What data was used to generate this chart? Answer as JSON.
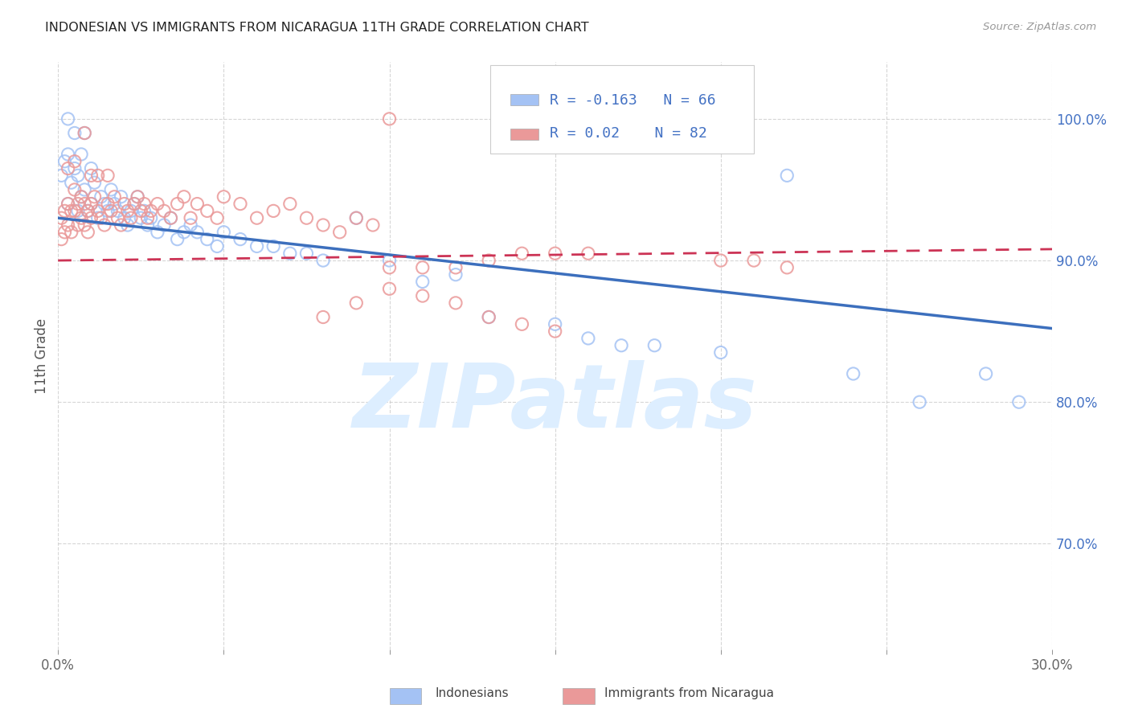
{
  "title": "INDONESIAN VS IMMIGRANTS FROM NICARAGUA 11TH GRADE CORRELATION CHART",
  "source": "Source: ZipAtlas.com",
  "ylabel": "11th Grade",
  "ytick_labels": [
    "70.0%",
    "80.0%",
    "90.0%",
    "100.0%"
  ],
  "ytick_values": [
    0.7,
    0.8,
    0.9,
    1.0
  ],
  "xmin": 0.0,
  "xmax": 0.3,
  "ymin": 0.625,
  "ymax": 1.04,
  "legend_blue_R": -0.163,
  "legend_blue_N": 66,
  "legend_pink_R": 0.02,
  "legend_pink_N": 82,
  "blue_color": "#a4c2f4",
  "pink_color": "#ea9999",
  "blue_line_color": "#3c6fbd",
  "pink_line_color": "#cc3355",
  "watermark": "ZIPatlas",
  "watermark_color": "#ddeeff",
  "blue_line_x0": 0.0,
  "blue_line_y0": 0.93,
  "blue_line_x1": 0.3,
  "blue_line_y1": 0.852,
  "pink_line_x0": 0.0,
  "pink_line_y0": 0.9,
  "pink_line_x1": 0.3,
  "pink_line_y1": 0.908,
  "blue_scatter_x": [
    0.001,
    0.002,
    0.003,
    0.003,
    0.004,
    0.005,
    0.005,
    0.006,
    0.006,
    0.007,
    0.007,
    0.008,
    0.009,
    0.01,
    0.01,
    0.011,
    0.012,
    0.013,
    0.014,
    0.015,
    0.016,
    0.017,
    0.018,
    0.019,
    0.02,
    0.021,
    0.022,
    0.023,
    0.024,
    0.025,
    0.026,
    0.027,
    0.028,
    0.03,
    0.032,
    0.034,
    0.036,
    0.038,
    0.04,
    0.042,
    0.045,
    0.048,
    0.05,
    0.055,
    0.06,
    0.065,
    0.07,
    0.075,
    0.08,
    0.09,
    0.1,
    0.11,
    0.12,
    0.13,
    0.15,
    0.16,
    0.17,
    0.18,
    0.2,
    0.22,
    0.24,
    0.26,
    0.28,
    0.29,
    0.003,
    0.008
  ],
  "blue_scatter_y": [
    0.96,
    0.97,
    0.94,
    0.975,
    0.955,
    0.965,
    0.99,
    0.935,
    0.96,
    0.945,
    0.975,
    0.95,
    0.935,
    0.94,
    0.965,
    0.955,
    0.93,
    0.945,
    0.94,
    0.935,
    0.95,
    0.94,
    0.935,
    0.945,
    0.93,
    0.925,
    0.935,
    0.94,
    0.945,
    0.93,
    0.935,
    0.925,
    0.93,
    0.92,
    0.925,
    0.93,
    0.915,
    0.92,
    0.925,
    0.92,
    0.915,
    0.91,
    0.92,
    0.915,
    0.91,
    0.91,
    0.905,
    0.905,
    0.9,
    0.93,
    0.9,
    0.885,
    0.89,
    0.86,
    0.855,
    0.845,
    0.84,
    0.84,
    0.835,
    0.96,
    0.82,
    0.8,
    0.82,
    0.8,
    1.0,
    0.99
  ],
  "pink_scatter_x": [
    0.001,
    0.001,
    0.002,
    0.002,
    0.003,
    0.003,
    0.004,
    0.004,
    0.005,
    0.005,
    0.006,
    0.006,
    0.007,
    0.007,
    0.008,
    0.008,
    0.009,
    0.009,
    0.01,
    0.01,
    0.011,
    0.012,
    0.013,
    0.014,
    0.015,
    0.016,
    0.017,
    0.018,
    0.019,
    0.02,
    0.021,
    0.022,
    0.023,
    0.024,
    0.025,
    0.026,
    0.027,
    0.028,
    0.03,
    0.032,
    0.034,
    0.036,
    0.038,
    0.04,
    0.042,
    0.045,
    0.048,
    0.05,
    0.055,
    0.06,
    0.065,
    0.07,
    0.075,
    0.08,
    0.085,
    0.09,
    0.095,
    0.1,
    0.11,
    0.12,
    0.13,
    0.14,
    0.15,
    0.16,
    0.003,
    0.005,
    0.008,
    0.01,
    0.012,
    0.015,
    0.08,
    0.09,
    0.1,
    0.11,
    0.12,
    0.13,
    0.14,
    0.15,
    0.2,
    0.21,
    0.1,
    0.22
  ],
  "pink_scatter_y": [
    0.93,
    0.915,
    0.935,
    0.92,
    0.94,
    0.925,
    0.935,
    0.92,
    0.95,
    0.935,
    0.94,
    0.925,
    0.945,
    0.93,
    0.94,
    0.925,
    0.935,
    0.92,
    0.94,
    0.93,
    0.945,
    0.935,
    0.93,
    0.925,
    0.94,
    0.935,
    0.945,
    0.93,
    0.925,
    0.94,
    0.935,
    0.93,
    0.94,
    0.945,
    0.935,
    0.94,
    0.93,
    0.935,
    0.94,
    0.935,
    0.93,
    0.94,
    0.945,
    0.93,
    0.94,
    0.935,
    0.93,
    0.945,
    0.94,
    0.93,
    0.935,
    0.94,
    0.93,
    0.925,
    0.92,
    0.93,
    0.925,
    0.895,
    0.895,
    0.895,
    0.9,
    0.905,
    0.905,
    0.905,
    0.965,
    0.97,
    0.99,
    0.96,
    0.96,
    0.96,
    0.86,
    0.87,
    0.88,
    0.875,
    0.87,
    0.86,
    0.855,
    0.85,
    0.9,
    0.9,
    1.0,
    0.895
  ]
}
